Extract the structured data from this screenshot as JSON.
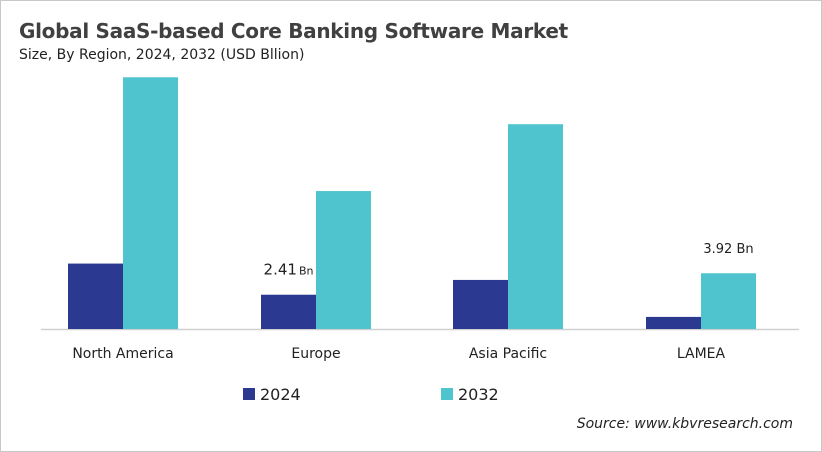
{
  "chart_data": {
    "type": "bar",
    "title": "Global SaaS-based Core Banking Software Market",
    "subtitle": "Size, By Region, 2024, 2032 (USD Bllion)",
    "categories": [
      "North America",
      "Europe",
      "Asia Pacific",
      "LAMEA"
    ],
    "series": [
      {
        "name": "2024",
        "color": "#2b3990",
        "values": [
          4.6,
          2.41,
          3.45,
          0.85
        ]
      },
      {
        "name": "2032",
        "color": "#4fc4cf",
        "values": [
          17.7,
          9.7,
          14.4,
          3.92
        ]
      }
    ],
    "annotations": [
      {
        "category": "Europe",
        "series": "2024",
        "text": "2.41",
        "unit": "Bn"
      },
      {
        "category": "LAMEA",
        "series": "2032",
        "text": "3.92 Bn"
      }
    ],
    "ylim": [
      0,
      18
    ],
    "grid": false,
    "y_axis_visible": false,
    "legend_position": "bottom"
  },
  "source": "Source: www.kbvresearch.com"
}
